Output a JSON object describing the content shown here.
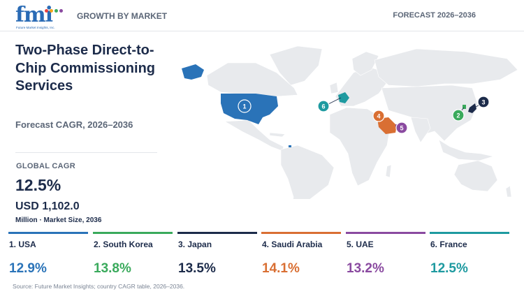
{
  "header": {
    "logo_text": "fmi",
    "logo_tagline": "Future Market Insights, Inc.",
    "section": "GROWTH BY MARKET",
    "forecast": "FORECAST 2026–2036"
  },
  "title": "Two-Phase Direct-to-Chip Commissioning Services",
  "subtitle": "Forecast CAGR, 2026–2036",
  "summary": {
    "global_cagr_label": "GLOBAL CAGR",
    "global_cagr_value": "12.5%",
    "market_size_value": "USD 1,102.0",
    "market_size_label": "Million · Market Size, 2036"
  },
  "map": {
    "land_color": "#e8eaed",
    "markers": [
      {
        "rank": "1",
        "country": "USA",
        "color": "#2a73b8"
      },
      {
        "rank": "2",
        "country": "South Korea",
        "color": "#3aaa5c"
      },
      {
        "rank": "3",
        "country": "Japan",
        "color": "#1c2b4a"
      },
      {
        "rank": "4",
        "country": "Saudi Arabia",
        "color": "#d96f33"
      },
      {
        "rank": "5",
        "country": "UAE",
        "color": "#8a4aa0"
      },
      {
        "rank": "6",
        "country": "France",
        "color": "#1e9aa0"
      }
    ]
  },
  "countries": [
    {
      "label": "1. USA",
      "cagr": "12.9%",
      "color": "#2a73b8"
    },
    {
      "label": "2. South Korea",
      "cagr": "13.8%",
      "color": "#3aaa5c"
    },
    {
      "label": "3. Japan",
      "cagr": "13.5%",
      "color": "#1c2b4a"
    },
    {
      "label": "4. Saudi Arabia",
      "cagr": "14.1%",
      "color": "#d96f33"
    },
    {
      "label": "5. UAE",
      "cagr": "13.2%",
      "color": "#8a4aa0"
    },
    {
      "label": "6. France",
      "cagr": "12.5%",
      "color": "#1e9aa0"
    }
  ],
  "source": "Source: Future Market Insights; country CAGR table, 2026–2036."
}
